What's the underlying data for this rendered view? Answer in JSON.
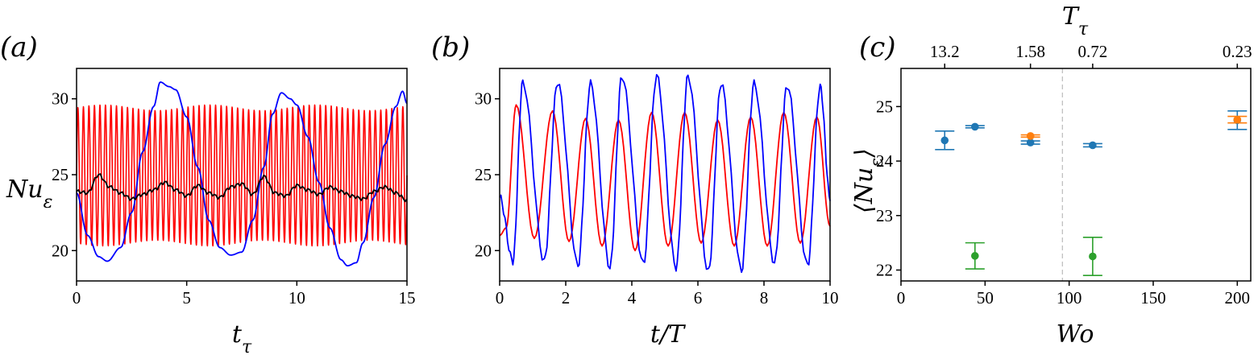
{
  "figure": {
    "panel_labels": [
      "(a)",
      "(b)",
      "(c)"
    ]
  },
  "chart_data": [
    {
      "panel": "(a)",
      "type": "line",
      "xlabel": "tτ",
      "ylabel": "Nuε",
      "xlim": [
        0,
        15
      ],
      "ylim": [
        18,
        32
      ],
      "xticks": [
        0,
        5,
        10,
        15
      ],
      "yticks": [
        20,
        25,
        30
      ],
      "series": [
        {
          "color": "#ff0000",
          "description_of_shape": "rapid oscillation",
          "period": 0.25,
          "min": 20.3,
          "max": 29.6,
          "x_range": [
            0,
            15
          ]
        },
        {
          "color": "#0000ff",
          "x": [
            0,
            0.5,
            1.0,
            1.4,
            2.0,
            2.5,
            3.0,
            3.5,
            3.8,
            4.2,
            4.5,
            5.0,
            5.5,
            6.0,
            6.5,
            7.0,
            7.5,
            8.0,
            8.5,
            8.9,
            9.3,
            9.7,
            10.0,
            10.5,
            11.0,
            11.5,
            12.0,
            12.3,
            12.7,
            13.0,
            13.5,
            14.0,
            14.5,
            14.8,
            15.0
          ],
          "y": [
            23.8,
            21.0,
            19.6,
            19.3,
            20.2,
            22.5,
            26.5,
            29.5,
            31.1,
            30.8,
            30.6,
            28.8,
            25.5,
            22.0,
            20.2,
            19.7,
            19.9,
            22.0,
            25.5,
            29.0,
            30.4,
            30.0,
            29.6,
            27.5,
            24.5,
            21.5,
            19.4,
            19.0,
            19.2,
            20.5,
            23.5,
            27.0,
            29.5,
            30.5,
            29.7
          ]
        },
        {
          "color": "#000000",
          "x": [
            0,
            0.5,
            1.0,
            1.5,
            2.0,
            2.5,
            3.0,
            3.5,
            4.0,
            4.5,
            5.0,
            5.5,
            6.0,
            6.5,
            7.0,
            7.5,
            8.0,
            8.5,
            9.0,
            9.5,
            10.0,
            10.5,
            11.0,
            11.5,
            12.0,
            12.5,
            13.0,
            13.5,
            14.0,
            14.5,
            15.0
          ],
          "y": [
            23.9,
            23.8,
            25.0,
            24.2,
            23.8,
            23.4,
            23.7,
            24.0,
            24.5,
            24.0,
            23.6,
            24.3,
            23.8,
            23.5,
            24.2,
            24.4,
            23.7,
            24.9,
            23.8,
            23.6,
            24.3,
            24.0,
            23.7,
            24.2,
            23.9,
            23.6,
            23.4,
            23.9,
            24.2,
            23.8,
            23.3
          ]
        }
      ]
    },
    {
      "panel": "(b)",
      "type": "line",
      "xlabel": "t/T",
      "xlim": [
        0,
        10
      ],
      "ylim": [
        18,
        32
      ],
      "xticks": [
        0,
        2,
        4,
        6,
        8,
        10
      ],
      "yticks": [
        20,
        25,
        30
      ],
      "series": [
        {
          "color": "#ff0000",
          "peaks_x": [
            0.5,
            1.6,
            2.6,
            3.6,
            4.6,
            5.6,
            6.6,
            7.6,
            8.6,
            9.6
          ],
          "peaks_y": [
            29.6,
            29.2,
            28.7,
            28.6,
            29.1,
            29.1,
            28.6,
            28.8,
            29.1,
            28.8
          ],
          "troughs_y": [
            20.8,
            20.6,
            20.3,
            20.0,
            20.3,
            20.5,
            20.3,
            20.3,
            20.5,
            20.5
          ]
        },
        {
          "color": "#0000ff",
          "peaks_x": [
            0.7,
            1.75,
            2.75,
            3.7,
            4.75,
            5.7,
            6.7,
            7.7,
            8.7,
            9.7
          ],
          "peaks_y": [
            31.1,
            31.1,
            31.0,
            31.5,
            31.5,
            31.5,
            31.0,
            31.0,
            30.9,
            30.8
          ],
          "troughs_y": [
            19.3,
            19.0,
            18.9,
            19.1,
            18.9,
            18.6,
            18.7,
            19.2,
            19.0,
            18.8
          ]
        }
      ]
    },
    {
      "panel": "(c)",
      "type": "scatter",
      "xlabel": "Wo",
      "ylabel": "⟨Nuε⟩",
      "top_xlabel": "Tτ",
      "xlim": [
        0,
        208
      ],
      "ylim": [
        21.8,
        25.7
      ],
      "xticks": [
        0,
        50,
        100,
        150,
        200
      ],
      "yticks": [
        22,
        23,
        24,
        25
      ],
      "top_ticks": [
        {
          "x": 26,
          "label": "13.2"
        },
        {
          "x": 77,
          "label": "1.58"
        },
        {
          "x": 114,
          "label": "0.72"
        },
        {
          "x": 200,
          "label": "0.23"
        }
      ],
      "vline_x": 96,
      "series": [
        {
          "color": "#1f77b4",
          "points": [
            {
              "x": 26,
              "y": 24.38,
              "err": 0.17
            },
            {
              "x": 44,
              "y": 24.63,
              "err": 0.02
            },
            {
              "x": 77,
              "y": 24.34,
              "err": 0.03
            },
            {
              "x": 114,
              "y": 24.29,
              "err": 0.03
            },
            {
              "x": 200,
              "y": 24.75,
              "err": 0.17
            }
          ]
        },
        {
          "color": "#ff7f0e",
          "points": [
            {
              "x": 77,
              "y": 24.46,
              "err": 0.02
            },
            {
              "x": 200,
              "y": 24.76,
              "err": 0.06
            }
          ]
        },
        {
          "color": "#2ca02c",
          "points": [
            {
              "x": 44,
              "y": 22.26,
              "err": 0.24
            },
            {
              "x": 114,
              "y": 22.25,
              "err": 0.35
            }
          ]
        }
      ]
    }
  ]
}
